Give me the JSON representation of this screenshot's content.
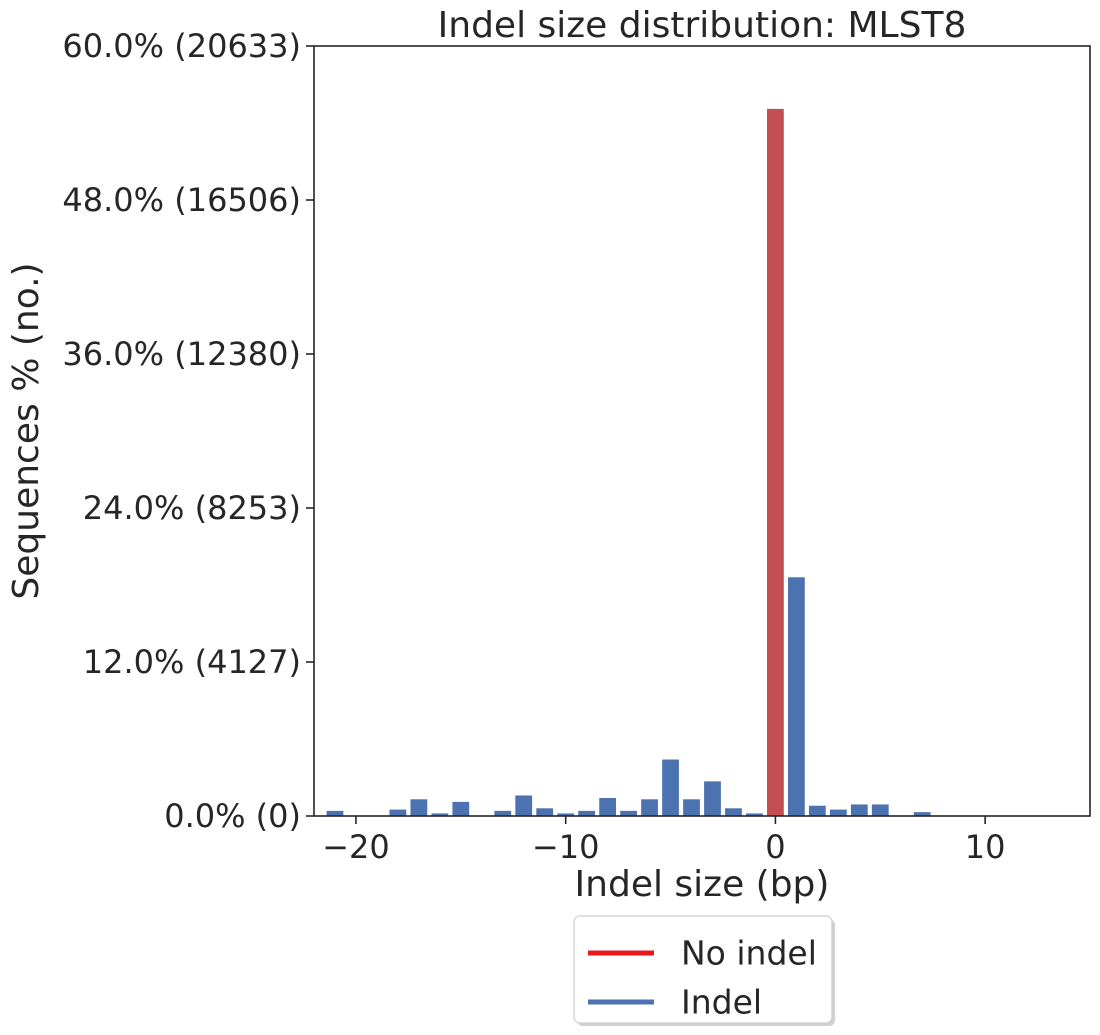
{
  "chart_data": {
    "type": "bar",
    "title": "Indel size distribution: MLST8",
    "xlabel": "Indel size (bp)",
    "ylabel": "Sequences % (no.)",
    "xlim": [
      -22,
      15
    ],
    "ylim": [
      0,
      60
    ],
    "x_ticks": [
      -20,
      -10,
      0,
      10
    ],
    "x_tick_labels": [
      "−20",
      "−10",
      "0",
      "10"
    ],
    "y_ticks": [
      0,
      12,
      24,
      36,
      48,
      60
    ],
    "y_tick_labels": [
      "0.0% (0)",
      "12.0% (4127)",
      "24.0% (8253)",
      "36.0% (12380)",
      "48.0% (16506)",
      "60.0% (20633)"
    ],
    "grid": false,
    "legend": {
      "placement": "below plot, center",
      "items": [
        {
          "label": "No indel",
          "color": "#e8181c"
        },
        {
          "label": "Indel",
          "color": "#4c72b0"
        }
      ]
    },
    "series": [
      {
        "name": "No indel",
        "color": "#c44e52",
        "x": [
          0
        ],
        "values": [
          55.1
        ]
      },
      {
        "name": "Indel",
        "color": "#4c72b0",
        "x": [
          -21,
          -18,
          -17,
          -16,
          -15,
          -13,
          -12,
          -11,
          -10,
          -9,
          -8,
          -7,
          -6,
          -5,
          -4,
          -3,
          -2,
          -1,
          1,
          2,
          3,
          4,
          5,
          7
        ],
        "values": [
          0.4,
          0.5,
          1.3,
          0.2,
          1.1,
          0.4,
          1.6,
          0.6,
          0.2,
          0.4,
          1.4,
          0.4,
          1.3,
          4.4,
          1.3,
          2.7,
          0.6,
          0.2,
          18.6,
          0.8,
          0.5,
          0.9,
          0.9,
          0.3
        ]
      }
    ]
  }
}
